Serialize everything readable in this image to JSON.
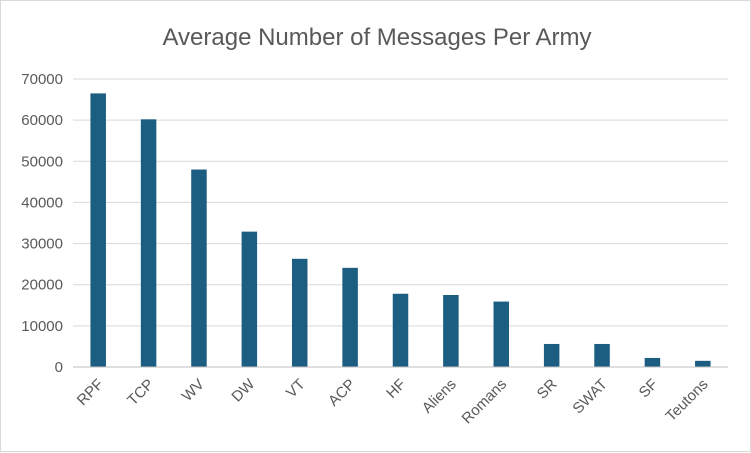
{
  "chart_data": {
    "type": "bar",
    "title": "Average Number of Messages Per Army",
    "xlabel": "",
    "ylabel": "",
    "categories": [
      "RPF",
      "TCP",
      "WV",
      "DW",
      "VT",
      "ACP",
      "HF",
      "Aliens",
      "Romans",
      "SR",
      "SWAT",
      "SF",
      "Teutons"
    ],
    "values": [
      66500,
      60200,
      48000,
      32900,
      26300,
      24100,
      17800,
      17500,
      15900,
      5600,
      5600,
      2200,
      1500
    ],
    "ylim": [
      0,
      70000
    ],
    "yticks": [
      0,
      10000,
      20000,
      30000,
      40000,
      50000,
      60000,
      70000
    ],
    "grid": true,
    "legend": "none",
    "bar_color": "#1b5e82"
  }
}
